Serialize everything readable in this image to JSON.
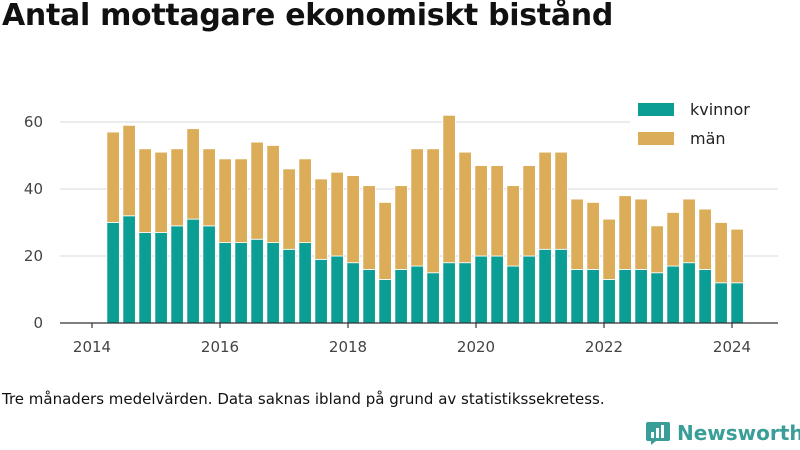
{
  "title": "Antal mottagare ekonomiskt bistånd",
  "note": "Tre månaders medelvärden. Data saknas ibland på grund av statistikssekretess.",
  "brand": {
    "name": "Newsworthy",
    "icon": "newsworthy-logo-icon",
    "color": "#3a9e98"
  },
  "chart_data": {
    "type": "bar",
    "stacked": true,
    "title": "",
    "xlabel": "",
    "ylabel": "",
    "ylim": [
      0,
      70
    ],
    "yticks": [
      0,
      20,
      40,
      60
    ],
    "xticks": [
      2014,
      2016,
      2018,
      2020,
      2022,
      2024
    ],
    "xlim": [
      2013.5,
      2024.75
    ],
    "grid": true,
    "legend_position": "top-right",
    "x": [
      2014.33,
      2014.58,
      2014.83,
      2015.08,
      2015.33,
      2015.58,
      2015.83,
      2016.08,
      2016.33,
      2016.58,
      2016.83,
      2017.08,
      2017.33,
      2017.58,
      2017.83,
      2018.08,
      2018.33,
      2018.58,
      2018.83,
      2019.08,
      2019.33,
      2019.58,
      2019.83,
      2020.08,
      2020.33,
      2020.58,
      2020.83,
      2021.08,
      2021.33,
      2021.58,
      2021.83,
      2022.08,
      2022.33,
      2022.58,
      2022.83,
      2023.08,
      2023.33,
      2023.58,
      2023.83,
      2024.08
    ],
    "series": [
      {
        "name": "kvinnor",
        "color": "#0b9e94",
        "values": [
          30,
          32,
          27,
          27,
          29,
          31,
          29,
          24,
          24,
          25,
          24,
          22,
          24,
          19,
          20,
          18,
          16,
          13,
          16,
          17,
          15,
          18,
          18,
          20,
          20,
          17,
          20,
          22,
          22,
          16,
          16,
          13,
          16,
          16,
          15,
          17,
          18,
          16,
          12,
          12
        ]
      },
      {
        "name": "män",
        "color": "#dbad58",
        "values": [
          27,
          27,
          25,
          24,
          23,
          27,
          23,
          25,
          25,
          29,
          29,
          24,
          25,
          24,
          25,
          26,
          25,
          23,
          25,
          35,
          37,
          44,
          33,
          27,
          27,
          24,
          27,
          29,
          29,
          21,
          20,
          18,
          22,
          21,
          14,
          16,
          19,
          18,
          18,
          16
        ]
      }
    ]
  }
}
